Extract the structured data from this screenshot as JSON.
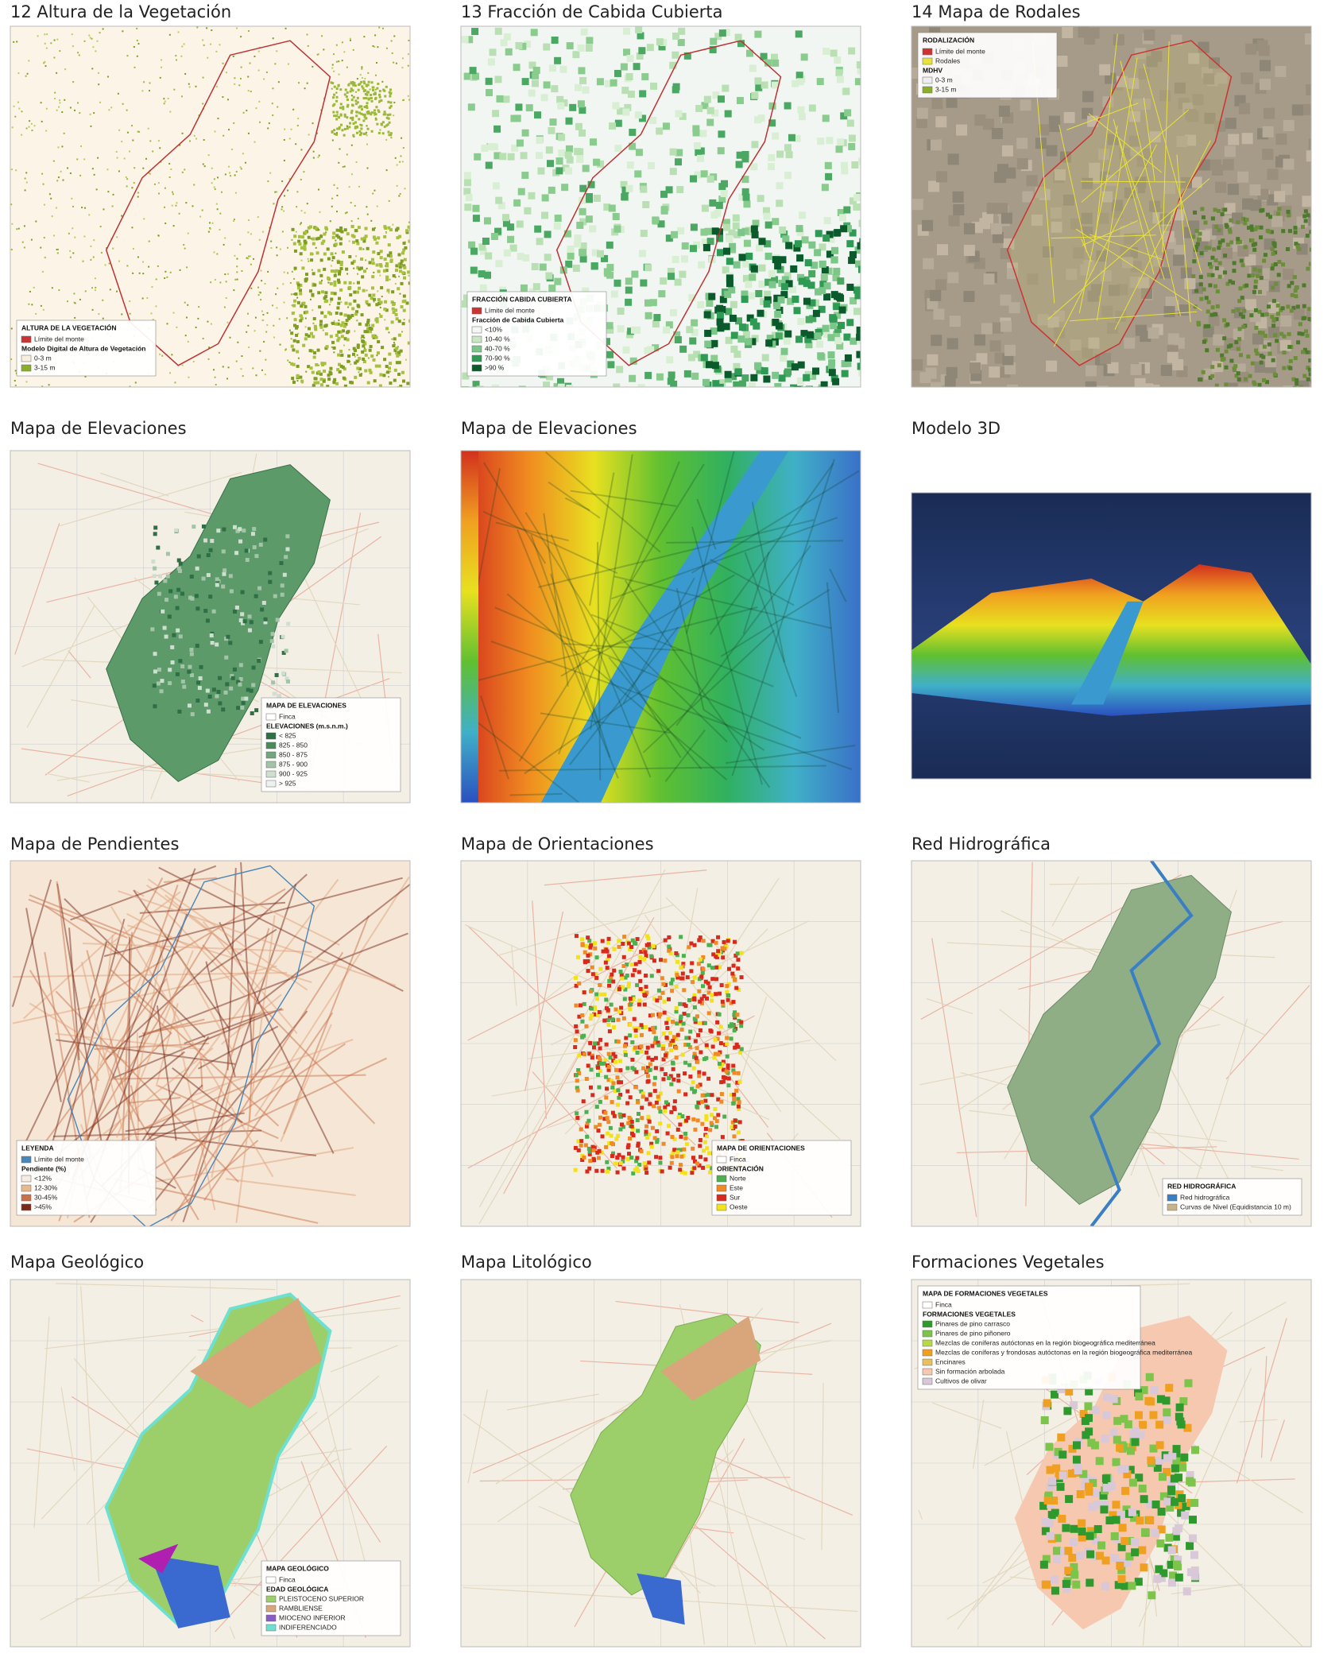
{
  "panels": [
    {
      "title": "12 Altura de la Vegetación",
      "legend": {
        "title": "ALTURA DE LA VEGETACIÓN",
        "items": [
          {
            "label": "Límite del monte",
            "color": "#c33"
          },
          {
            "label": "Modelo Digital de Altura de Vegetación"
          },
          {
            "label": "0-3 m",
            "color": "#f7eedc"
          },
          {
            "label": "3-15 m",
            "color": "#8aae2a"
          }
        ]
      }
    },
    {
      "title": "13 Fracción de Cabida Cubierta",
      "legend": {
        "title": "FRACCIÓN CABIDA CUBIERTA",
        "items": [
          {
            "label": "Límite del monte",
            "color": "#c33"
          },
          {
            "label": "Fracción de Cabida Cubierta"
          },
          {
            "label": "<10%",
            "color": "#f4f7f4"
          },
          {
            "label": "10-40 %",
            "color": "#c8e8c4"
          },
          {
            "label": "40-70 %",
            "color": "#7cc68a"
          },
          {
            "label": "70-90 %",
            "color": "#2e9a54"
          },
          {
            "label": ">90 %",
            "color": "#0b5a2c"
          }
        ]
      }
    },
    {
      "title": "14 Mapa de Rodales",
      "legend": {
        "title": "RODALIZACIÓN",
        "items": [
          {
            "label": "Límite del monte",
            "color": "#c33"
          },
          {
            "label": "Rodales",
            "color": "#e8e23a"
          },
          {
            "label": "MDHV"
          },
          {
            "label": "0-3 m",
            "color": "#eee"
          },
          {
            "label": "3-15 m",
            "color": "#8aae2a"
          }
        ]
      }
    },
    {
      "title": "Mapa de Elevaciones",
      "legend": {
        "title": "MAPA DE ELEVACIONES",
        "items": [
          {
            "label": "Finca",
            "color": "#fff"
          },
          {
            "label": "ELEVACIONES (m.s.n.m.)"
          },
          {
            "label": "< 825",
            "color": "#2f6f45"
          },
          {
            "label": "825 - 850",
            "color": "#4c8a5c"
          },
          {
            "label": "850 - 875",
            "color": "#74a67e"
          },
          {
            "label": "875 - 900",
            "color": "#a3c4a6"
          },
          {
            "label": "900 - 925",
            "color": "#cfdfcf"
          },
          {
            "label": "> 925",
            "color": "#eef2ee"
          }
        ]
      }
    },
    {
      "title": "Mapa de Elevaciones"
    },
    {
      "title": "Modelo 3D"
    },
    {
      "title": "Mapa de Pendientes",
      "legend": {
        "title": "LEYENDA",
        "items": [
          {
            "label": "Límite del monte",
            "color": "#4a86b8"
          },
          {
            "label": "Pendiente (%)"
          },
          {
            "label": "<12%",
            "color": "#f6ece0"
          },
          {
            "label": "12-30%",
            "color": "#e9b88f"
          },
          {
            "label": "30-45%",
            "color": "#c9714a"
          },
          {
            "label": ">45%",
            "color": "#7a2a1a"
          }
        ]
      }
    },
    {
      "title": "Mapa de Orientaciones",
      "legend": {
        "title": "MAPA DE ORIENTACIONES",
        "items": [
          {
            "label": "Finca",
            "color": "#fff"
          },
          {
            "label": "ORIENTACIÓN"
          },
          {
            "label": "Norte",
            "color": "#4caf50"
          },
          {
            "label": "Este",
            "color": "#f08a24"
          },
          {
            "label": "Sur",
            "color": "#d9291c"
          },
          {
            "label": "Oeste",
            "color": "#f2e21c"
          }
        ]
      }
    },
    {
      "title": "Red Hidrográfica",
      "legend": {
        "title": "RED HIDROGRÁFICA",
        "items": [
          {
            "label": "Red hidrográfica",
            "color": "#3a7fc4"
          },
          {
            "label": "Curvas de Nivel (Equidistancia 10 m)",
            "color": "#c9b28a"
          }
        ]
      }
    },
    {
      "title": "Mapa Geológico",
      "legend": {
        "title": "MAPA GEOLÓGICO",
        "items": [
          {
            "label": "Finca",
            "color": "#fff"
          },
          {
            "label": "EDAD GEOLÓGICA"
          },
          {
            "label": "PLEISTOCENO SUPERIOR",
            "color": "#9ccf6a"
          },
          {
            "label": "RAMBLIENSE",
            "color": "#d9a57a"
          },
          {
            "label": "MIOCENO INFERIOR",
            "color": "#8a5cc8"
          },
          {
            "label": "INDIFERENCIADO",
            "color": "#6ee0d0"
          }
        ]
      }
    },
    {
      "title": "Mapa Litológico"
    },
    {
      "title": "Formaciones Vegetales",
      "legend": {
        "title": "MAPA DE FORMACIONES VEGETALES",
        "items": [
          {
            "label": "Finca",
            "color": "#fff"
          },
          {
            "label": "FORMACIONES VEGETALES"
          },
          {
            "label": "Pinares de pino carrasco",
            "color": "#2e9a2e"
          },
          {
            "label": "Pinares de pino piñonero",
            "color": "#7cc44a"
          },
          {
            "label": "Mezclas de coníferas autóctonas en la región biogeográfica mediterránea",
            "color": "#b8d84a"
          },
          {
            "label": "Mezclas de coníferas y frondosas autóctonas en la región biogeográfica mediterránea",
            "color": "#f0a020"
          },
          {
            "label": "Encinares",
            "color": "#e8c060"
          },
          {
            "label": "Sin formación arbolada",
            "color": "#f6c8b0"
          },
          {
            "label": "Cultivos de olivar",
            "color": "#d8c8d8"
          }
        ]
      }
    }
  ]
}
